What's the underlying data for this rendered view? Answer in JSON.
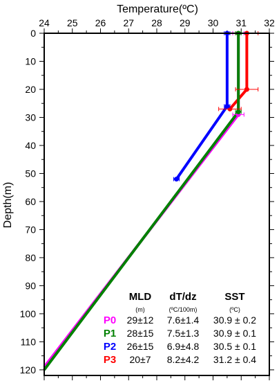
{
  "chart_data": {
    "type": "line",
    "title": "",
    "xlabel": "Temperature(ºC)",
    "ylabel": "Depth(m)",
    "xlim": [
      24,
      32
    ],
    "ylim": [
      0,
      122
    ],
    "y_inverted": true,
    "x_axis_position": "top",
    "grid": false,
    "x_ticks": [
      "24",
      "25",
      "26",
      "27",
      "28",
      "29",
      "30",
      "31",
      "32"
    ],
    "y_ticks": [
      "0",
      "10",
      "20",
      "30",
      "40",
      "50",
      "60",
      "70",
      "80",
      "90",
      "100",
      "110",
      "120"
    ],
    "series": [
      {
        "name": "P0",
        "color": "#ff00ff",
        "points": [
          {
            "x": 30.9,
            "y": 0,
            "xerr": 0.2
          },
          {
            "x": 30.9,
            "y": 29,
            "xerr": 0.2
          },
          {
            "x": 24.0,
            "y": 119
          }
        ]
      },
      {
        "name": "P1",
        "color": "#008000",
        "points": [
          {
            "x": 30.9,
            "y": 0,
            "xerr": 0.1
          },
          {
            "x": 30.9,
            "y": 28,
            "xerr": 0.1
          },
          {
            "x": 24.0,
            "y": 120
          }
        ]
      },
      {
        "name": "P2",
        "color": "#0000ff",
        "points": [
          {
            "x": 30.5,
            "y": 0,
            "xerr": 0.1
          },
          {
            "x": 30.5,
            "y": 26,
            "xerr": 0.1
          },
          {
            "x": 28.7,
            "y": 52,
            "xerr": 0.1
          }
        ]
      },
      {
        "name": "P3",
        "color": "#ff0000",
        "points": [
          {
            "x": 31.2,
            "y": 0,
            "xerr": 0.4
          },
          {
            "x": 31.2,
            "y": 20,
            "xerr": 0.4
          },
          {
            "x": 30.6,
            "y": 27,
            "xerr": 0.4
          }
        ]
      }
    ],
    "table": {
      "headers": [
        {
          "label": "MLD",
          "unit": "(m)"
        },
        {
          "label": "dT/dz",
          "unit": "(ºC/100m)"
        },
        {
          "label": "SST",
          "unit": "(ºC)"
        }
      ],
      "rows": [
        {
          "name": "P0",
          "color": "#ff00ff",
          "cells": [
            "29±12",
            "7.6±1.4",
            "30.9 ± 0.2"
          ]
        },
        {
          "name": "P1",
          "color": "#008000",
          "cells": [
            "28±15",
            "7.5±1.3",
            "30.9 ± 0.1"
          ]
        },
        {
          "name": "P2",
          "color": "#0000ff",
          "cells": [
            "26±15",
            "6.9±4.8",
            "30.5 ± 0.1"
          ]
        },
        {
          "name": "P3",
          "color": "#ff0000",
          "cells": [
            "20±7",
            "8.2±4.2",
            "31.2 ± 0.4"
          ]
        }
      ]
    }
  }
}
